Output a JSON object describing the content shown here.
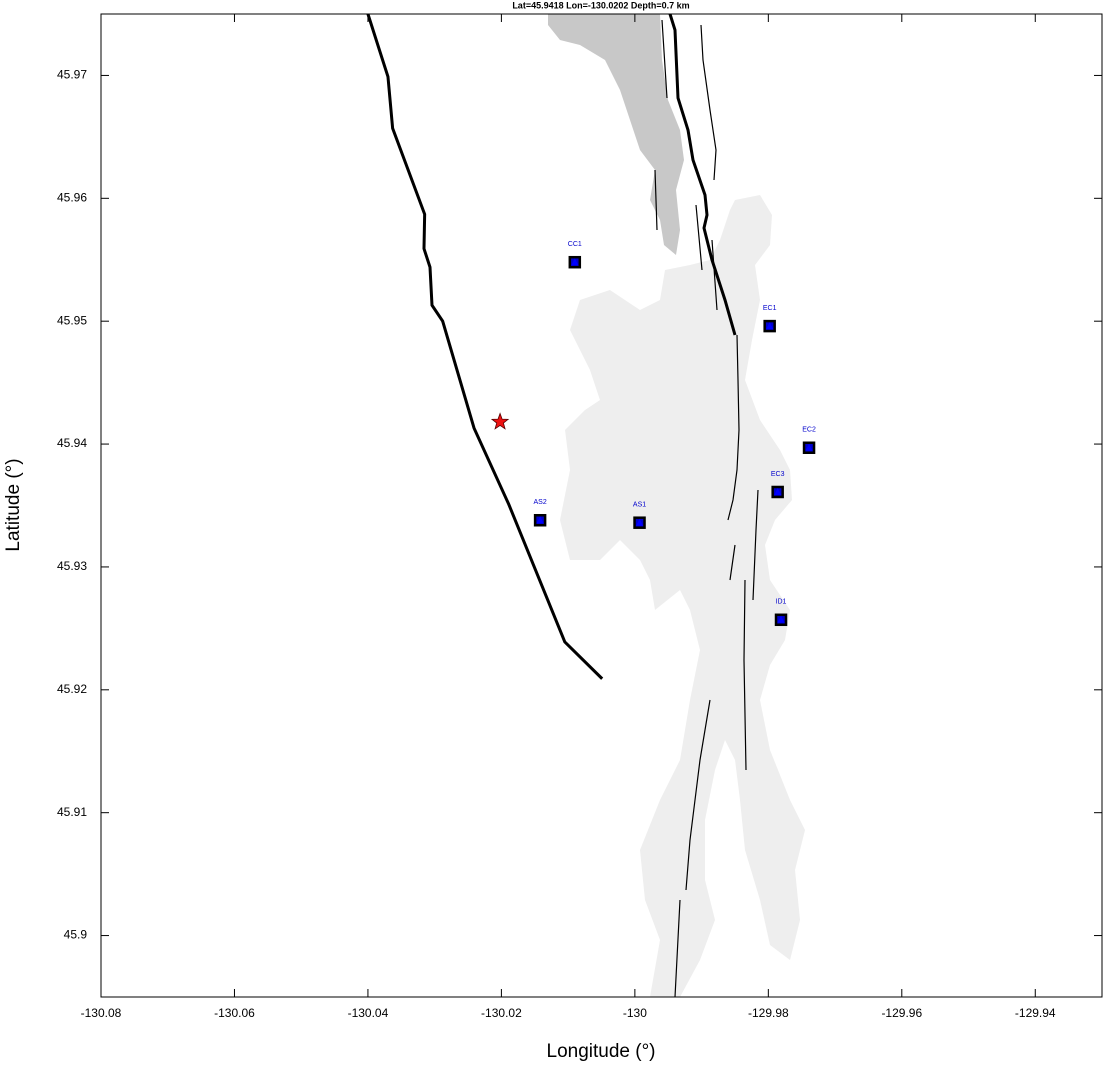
{
  "chart_data": {
    "type": "map",
    "title": "Lat=45.9418  Lon=-130.0202  Depth=0.7 km",
    "xlabel": "Longitude (°)",
    "ylabel": "Latitude (°)",
    "xlim": [
      -130.08,
      -129.93
    ],
    "ylim": [
      45.895,
      45.975
    ],
    "xticks": [
      -130.08,
      -130.06,
      -130.04,
      -130.02,
      -130,
      -129.98,
      -129.96,
      -129.94
    ],
    "yticks": [
      45.9,
      45.91,
      45.92,
      45.93,
      45.94,
      45.95,
      45.96,
      45.97
    ],
    "lines": [
      {
        "color": "#000000",
        "x": [
          -130.04,
          -130.037,
          -130.0363,
          -130.0315,
          -130.0316,
          -130.0307,
          -130.0304,
          -130.0288,
          -130.0241,
          -130.0189,
          -130.0105,
          -130.0049
        ],
        "y": [
          45.975,
          45.9699,
          45.9657,
          45.9587,
          45.9559,
          45.9544,
          45.9513,
          45.95,
          45.9413,
          45.9351,
          45.9239,
          45.9209
        ]
      }
    ],
    "stations": {
      "color": "#0000cc",
      "names": [
        "CC1",
        "EC1",
        "EC2",
        "EC3",
        "AS2",
        "AS1",
        "ID1"
      ],
      "x": [
        -130.009,
        -129.9798,
        -129.9739,
        -129.9786,
        -130.0142,
        -129.9993,
        -129.9781
      ],
      "y": [
        45.9548,
        45.9496,
        45.9397,
        45.9361,
        45.9338,
        45.9336,
        45.9257
      ]
    },
    "event": {
      "color": "#ee1111",
      "x": -130.0202,
      "y": 45.9418
    }
  }
}
